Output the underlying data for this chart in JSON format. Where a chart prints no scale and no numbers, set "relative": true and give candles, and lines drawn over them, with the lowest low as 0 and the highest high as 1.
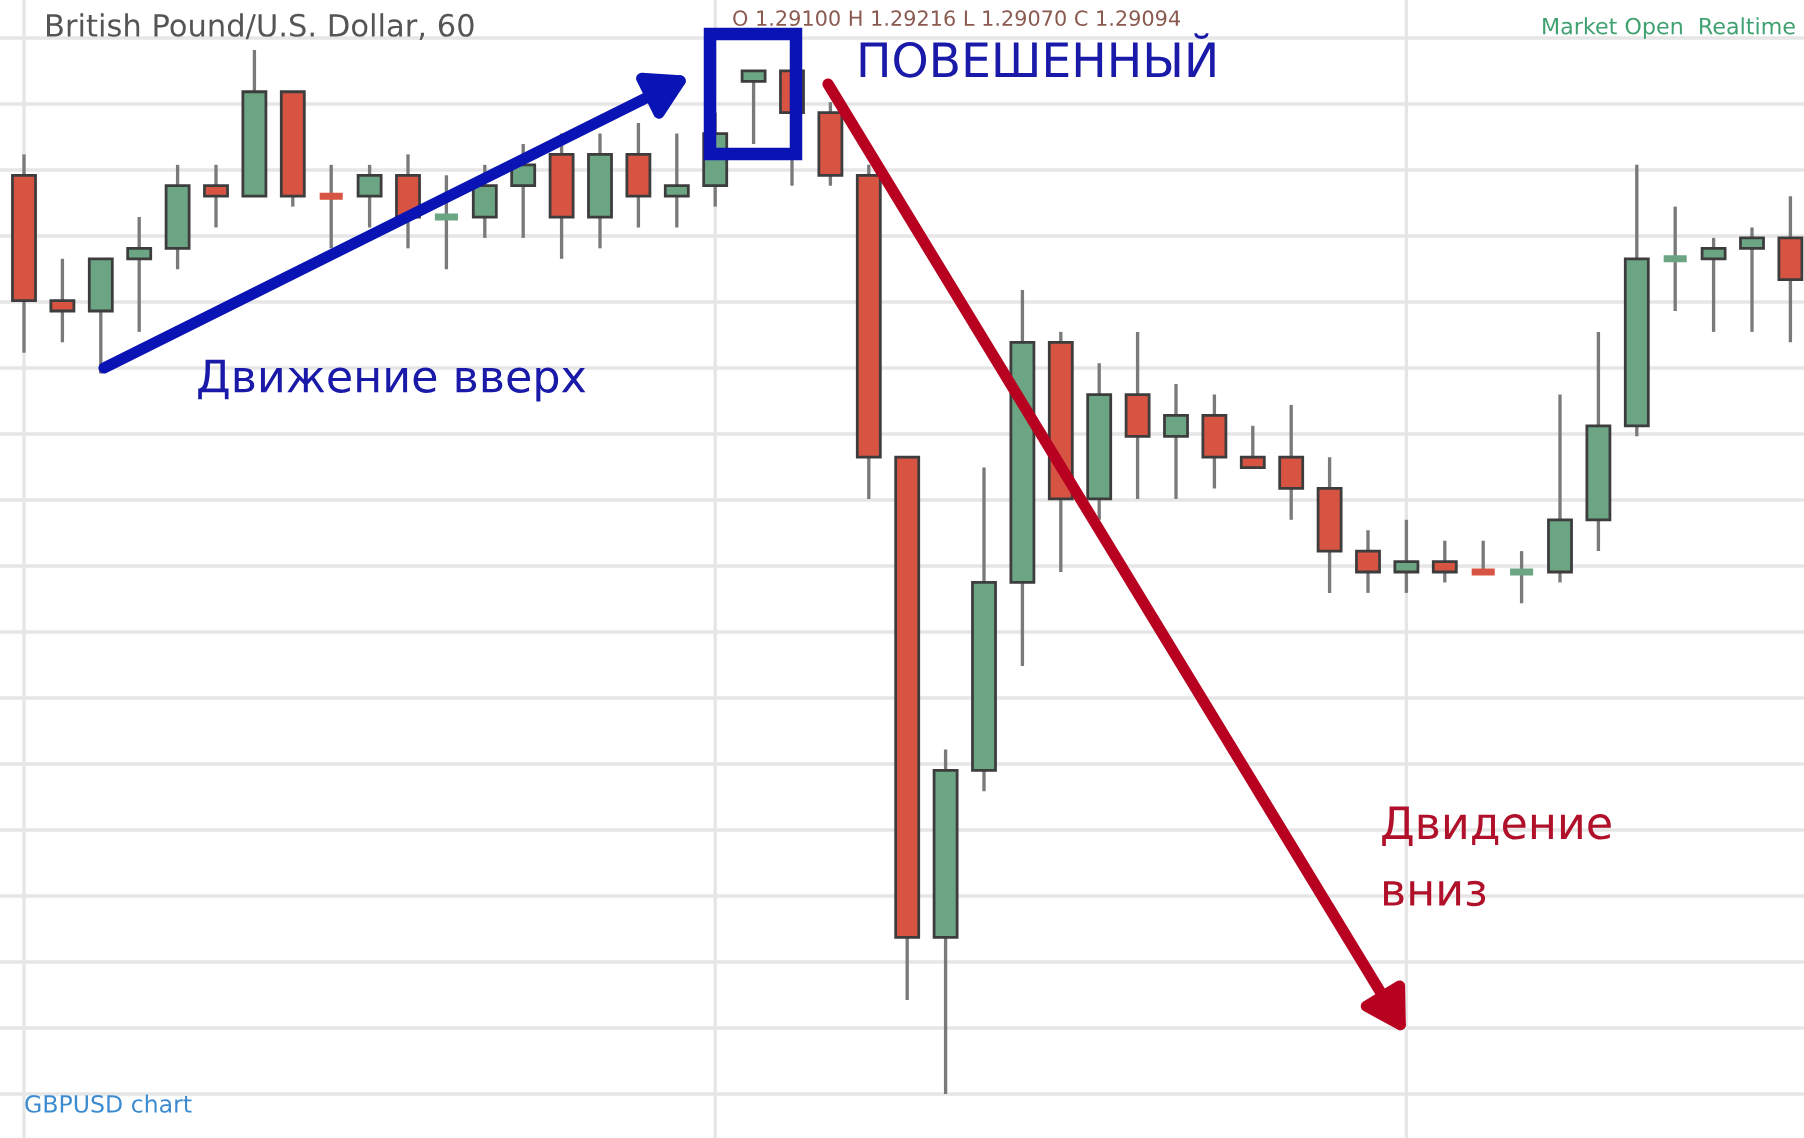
{
  "chart_data": {
    "type": "candlestick",
    "relative": true,
    "title": "British Pound/U.S. Dollar, 60",
    "annotations": [
      "O 1.29100 H 1.29216 L 1.29070 C 1.29094",
      "Market Open  Realtime",
      "ПОВЕШЕННЫЙ",
      "Движение вверх",
      "Двидение\nвниз",
      "GBPUSD chart"
    ],
    "categories": [
      null,
      null,
      null,
      null,
      null,
      null,
      null,
      null,
      null,
      null,
      null,
      null,
      null,
      null,
      null,
      null,
      null,
      null,
      null,
      null,
      null,
      null,
      null,
      null,
      null,
      null,
      null,
      null,
      null,
      null,
      null,
      null,
      null,
      null,
      null,
      null,
      null,
      null,
      null,
      null,
      null,
      null,
      null,
      null,
      null,
      null,
      null
    ],
    "ohlc": [
      [
        0.88,
        0.9,
        0.71,
        0.76
      ],
      [
        0.76,
        0.8,
        0.72,
        0.75
      ],
      [
        0.75,
        0.8,
        0.69,
        0.8
      ],
      [
        0.8,
        0.84,
        0.73,
        0.81
      ],
      [
        0.81,
        0.89,
        0.79,
        0.87
      ],
      [
        0.87,
        0.89,
        0.83,
        0.86
      ],
      [
        0.86,
        1.0,
        0.86,
        0.96
      ],
      [
        0.96,
        0.96,
        0.85,
        0.86
      ],
      [
        0.86,
        0.89,
        0.81,
        0.86
      ],
      [
        0.86,
        0.89,
        0.83,
        0.88
      ],
      [
        0.88,
        0.9,
        0.81,
        0.84
      ],
      [
        0.84,
        0.88,
        0.79,
        0.84
      ],
      [
        0.84,
        0.89,
        0.82,
        0.87
      ],
      [
        0.87,
        0.91,
        0.82,
        0.89
      ],
      [
        0.9,
        0.92,
        0.8,
        0.84
      ],
      [
        0.84,
        0.92,
        0.81,
        0.9
      ],
      [
        0.9,
        0.93,
        0.83,
        0.86
      ],
      [
        0.86,
        0.92,
        0.83,
        0.87
      ],
      [
        0.87,
        0.94,
        0.85,
        0.92
      ],
      [
        0.97,
        0.98,
        0.91,
        0.98
      ],
      [
        0.98,
        0.98,
        0.87,
        0.94
      ],
      [
        0.94,
        0.95,
        0.87,
        0.88
      ],
      [
        0.88,
        0.89,
        0.57,
        0.61
      ],
      [
        0.61,
        0.61,
        0.09,
        0.15
      ],
      [
        0.15,
        0.33,
        0.0,
        0.31
      ],
      [
        0.31,
        0.6,
        0.29,
        0.49
      ],
      [
        0.49,
        0.77,
        0.41,
        0.72
      ],
      [
        0.72,
        0.73,
        0.5,
        0.57
      ],
      [
        0.57,
        0.7,
        0.55,
        0.67
      ],
      [
        0.67,
        0.73,
        0.57,
        0.63
      ],
      [
        0.63,
        0.68,
        0.57,
        0.65
      ],
      [
        0.65,
        0.67,
        0.58,
        0.61
      ],
      [
        0.61,
        0.64,
        0.6,
        0.6
      ],
      [
        0.61,
        0.66,
        0.55,
        0.58
      ],
      [
        0.58,
        0.61,
        0.48,
        0.52
      ],
      [
        0.52,
        0.54,
        0.48,
        0.5
      ],
      [
        0.5,
        0.55,
        0.48,
        0.51
      ],
      [
        0.51,
        0.53,
        0.49,
        0.5
      ],
      [
        0.5,
        0.53,
        0.5,
        0.5
      ],
      [
        0.5,
        0.52,
        0.47,
        0.5
      ],
      [
        0.5,
        0.67,
        0.49,
        0.55
      ],
      [
        0.55,
        0.73,
        0.52,
        0.64
      ],
      [
        0.64,
        0.89,
        0.63,
        0.8
      ],
      [
        0.8,
        0.85,
        0.75,
        0.8
      ],
      [
        0.8,
        0.82,
        0.73,
        0.81
      ],
      [
        0.81,
        0.83,
        0.73,
        0.82
      ],
      [
        0.82,
        0.86,
        0.72,
        0.78
      ]
    ],
    "colors": [
      "#d75442",
      "#d75442",
      "#6ba583",
      "#6ba583",
      "#6ba583",
      "#d75442",
      "#6ba583",
      "#d75442",
      "#d75442",
      "#6ba583",
      "#d75442",
      "#6ba583",
      "#6ba583",
      "#6ba583",
      "#d75442",
      "#6ba583",
      "#d75442",
      "#6ba583",
      "#6ba583",
      "#6ba583",
      "#d75442",
      "#d75442",
      "#d75442",
      "#d75442",
      "#6ba583",
      "#6ba583",
      "#6ba583",
      "#d75442",
      "#6ba583",
      "#d75442",
      "#6ba583",
      "#d75442",
      "#d75442",
      "#d75442",
      "#d75442",
      "#d75442",
      "#6ba583",
      "#d75442",
      "#d75442",
      "#6ba583",
      "#6ba583",
      "#6ba583",
      "#6ba583",
      "#6ba583",
      "#6ba583",
      "#6ba583",
      "#d75442"
    ],
    "grid": true
  }
}
